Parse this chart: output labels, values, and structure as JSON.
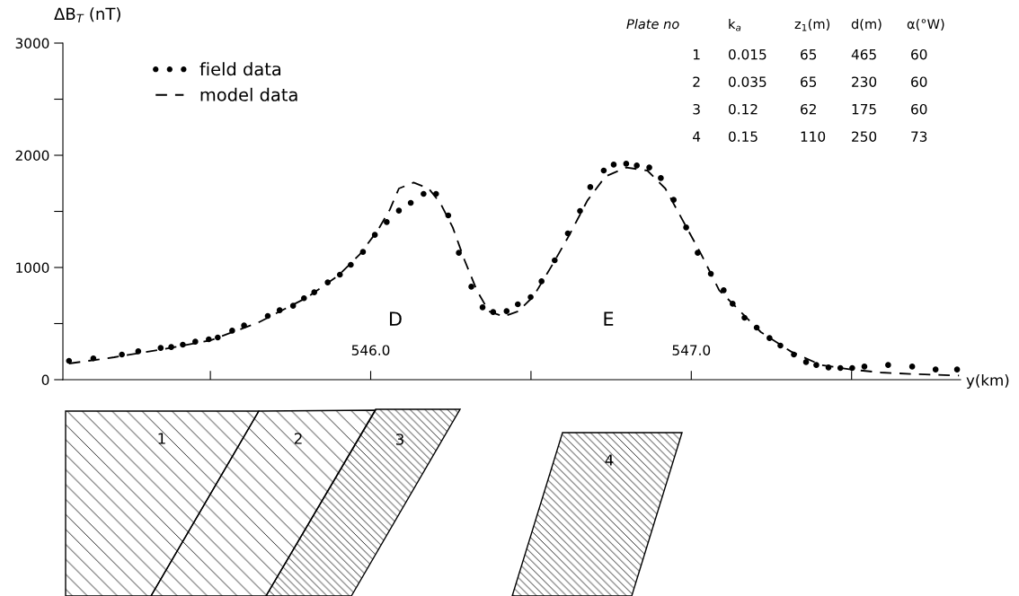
{
  "chart_data": {
    "type": "scatter",
    "ylabel": "ΔB$_{T}$ (nT)",
    "xlabel": "y(km)",
    "xlim": [
      545.04,
      547.84
    ],
    "ylim": [
      0,
      3000
    ],
    "xticks": [
      {
        "value": 545.5,
        "label": null
      },
      {
        "value": 546.0,
        "label": "546.0"
      },
      {
        "value": 546.5,
        "label": null
      },
      {
        "value": 547.0,
        "label": "547.0"
      },
      {
        "value": 547.5,
        "label": null
      }
    ],
    "yticks": [
      0,
      {
        "value": 500,
        "label": null
      },
      1000,
      {
        "value": 1500,
        "label": null
      },
      2000,
      {
        "value": 2500,
        "label": null
      },
      3000
    ],
    "legend": "top left",
    "series": [
      {
        "name": "field data",
        "marker": "circle",
        "color": "#000000",
        "x": [
          545.059,
          545.135,
          545.224,
          545.275,
          545.345,
          545.378,
          545.414,
          545.453,
          545.495,
          545.523,
          545.568,
          545.605,
          545.679,
          545.716,
          545.758,
          545.792,
          545.824,
          545.866,
          545.904,
          545.938,
          545.976,
          546.013,
          546.05,
          546.088,
          546.125,
          546.165,
          546.204,
          546.242,
          546.275,
          546.314,
          546.349,
          546.382,
          546.424,
          546.459,
          546.499,
          546.533,
          546.574,
          546.615,
          546.653,
          546.685,
          546.727,
          546.758,
          546.797,
          546.83,
          546.869,
          546.905,
          546.945,
          546.984,
          547.02,
          547.061,
          547.101,
          547.129,
          547.166,
          547.204,
          547.244,
          547.278,
          547.32,
          547.358,
          547.39,
          547.428,
          547.465,
          547.502,
          547.54,
          547.614,
          547.689,
          547.762,
          547.829
        ],
        "values": [
          168,
          190,
          224,
          253,
          283,
          291,
          312,
          339,
          360,
          376,
          437,
          483,
          568,
          619,
          659,
          726,
          779,
          867,
          936,
          1024,
          1139,
          1291,
          1405,
          1507,
          1576,
          1656,
          1656,
          1464,
          1131,
          829,
          645,
          603,
          611,
          672,
          736,
          877,
          1064,
          1304,
          1504,
          1717,
          1864,
          1917,
          1925,
          1909,
          1891,
          1797,
          1603,
          1357,
          1131,
          944,
          797,
          677,
          552,
          464,
          371,
          304,
          224,
          157,
          131,
          109,
          104,
          104,
          117,
          131,
          117,
          91,
          91
        ]
      },
      {
        "name": "model data",
        "type": "line",
        "line_style": "dashed",
        "color": "#000000",
        "x": [
          545.059,
          545.2,
          545.35,
          545.5,
          545.65,
          545.8,
          545.9,
          545.966,
          546.022,
          546.06,
          546.088,
          546.134,
          546.181,
          546.218,
          546.256,
          546.293,
          546.331,
          546.368,
          546.415,
          546.461,
          546.508,
          546.564,
          546.62,
          546.676,
          546.732,
          546.797,
          546.863,
          546.919,
          546.975,
          547.031,
          547.087,
          547.124,
          547.217,
          547.311,
          547.404,
          547.498,
          547.591,
          547.684,
          547.835
        ],
        "values": [
          144,
          200,
          270,
          350,
          510,
          730,
          930,
          1117,
          1331,
          1517,
          1704,
          1757,
          1704,
          1571,
          1357,
          1064,
          797,
          611,
          563,
          611,
          744,
          1011,
          1291,
          1597,
          1811,
          1891,
          1864,
          1704,
          1411,
          1117,
          797,
          691,
          424,
          251,
          131,
          91,
          64,
          51,
          37
        ]
      }
    ],
    "annotations": [
      "Plate no",
      "k$_{a}$",
      "z$_{1}$(m)",
      "d(m)",
      "α(°W)",
      "1",
      "0.015",
      "65",
      "465",
      "60",
      "2",
      "0.035",
      "65",
      "230",
      "60",
      "3",
      "0.12",
      "62",
      "175",
      "60",
      "4",
      "0.15",
      "110",
      "250",
      "73",
      "D",
      "E",
      "1",
      "2",
      "3",
      "4"
    ]
  }
}
